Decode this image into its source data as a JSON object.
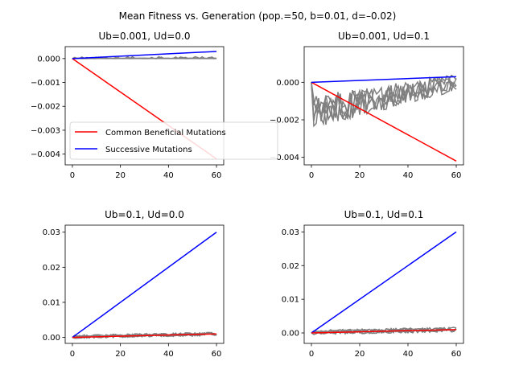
{
  "figure": {
    "title": "Mean Fitness vs. Generation (pop.=50, b=0.01, d=–0.02)"
  },
  "colors": {
    "simulation": "#808080",
    "common": "#ff0000",
    "successive": "#0000ff",
    "axes": "#000000"
  },
  "legend": {
    "entries": [
      {
        "label": "Common Beneficial Mutations",
        "color": "#ff0000"
      },
      {
        "label": "Successive Mutations",
        "color": "#0000ff"
      }
    ]
  },
  "chart_data": [
    {
      "type": "line",
      "title": "Ub=0.001, Ud=0.0",
      "xlim": [
        -3,
        63
      ],
      "ylim": [
        -0.00445,
        0.0005
      ],
      "xticks": [
        0,
        20,
        40,
        60
      ],
      "xtick_labels": [
        "0",
        "20",
        "40",
        "60"
      ],
      "yticks": [
        0,
        -0.001,
        -0.002,
        -0.003,
        -0.004
      ],
      "ytick_labels": [
        "0.000",
        "−0.001",
        "−0.002",
        "−0.003",
        "−0.004"
      ],
      "series": [
        {
          "name": "Common Beneficial Mutations",
          "color": "#ff0000",
          "x": [
            0,
            60
          ],
          "y": [
            0,
            -0.0042
          ]
        },
        {
          "name": "Successive Mutations",
          "color": "#0000ff",
          "x": [
            0,
            60
          ],
          "y": [
            0,
            0.0003
          ]
        }
      ],
      "sim_amp": 4e-05,
      "sim_mode": "flat"
    },
    {
      "type": "line",
      "title": "Ub=0.001, Ud=0.1",
      "xlim": [
        -3,
        63
      ],
      "ylim": [
        -0.0044,
        0.0019
      ],
      "xticks": [
        0,
        20,
        40,
        60
      ],
      "xtick_labels": [
        "0",
        "20",
        "40",
        "60"
      ],
      "yticks": [
        0,
        -0.002,
        -0.004
      ],
      "ytick_labels": [
        "0.000",
        "−0.002",
        "−0.004"
      ],
      "series": [
        {
          "name": "Common Beneficial Mutations",
          "color": "#ff0000",
          "x": [
            0,
            60
          ],
          "y": [
            0,
            -0.0042
          ]
        },
        {
          "name": "Successive Mutations",
          "color": "#0000ff",
          "x": [
            0,
            60
          ],
          "y": [
            0,
            0.0003
          ]
        }
      ],
      "sim_amp": 0.0009,
      "sim_mode": "noisy"
    },
    {
      "type": "line",
      "title": "Ub=0.1, Ud=0.0",
      "xlim": [
        -3,
        63
      ],
      "ylim": [
        -0.0017,
        0.032
      ],
      "xticks": [
        0,
        20,
        40,
        60
      ],
      "xtick_labels": [
        "0",
        "20",
        "40",
        "60"
      ],
      "yticks": [
        0,
        0.01,
        0.02,
        0.03
      ],
      "ytick_labels": [
        "0.00",
        "0.01",
        "0.02",
        "0.03"
      ],
      "series": [
        {
          "name": "Successive Mutations",
          "color": "#0000ff",
          "x": [
            0,
            60
          ],
          "y": [
            0,
            0.03
          ]
        },
        {
          "name": "Common Beneficial Mutations",
          "color": "#ff0000",
          "x": [
            0,
            60
          ],
          "y": [
            0,
            0.001
          ]
        }
      ],
      "sim_amp": 0.0005,
      "sim_mode": "rising"
    },
    {
      "type": "line",
      "title": "Ub=0.1, Ud=0.1",
      "xlim": [
        -3,
        63
      ],
      "ylim": [
        -0.0031,
        0.032
      ],
      "xticks": [
        0,
        20,
        40,
        60
      ],
      "xtick_labels": [
        "0",
        "20",
        "40",
        "60"
      ],
      "yticks": [
        0,
        0.01,
        0.02,
        0.03
      ],
      "ytick_labels": [
        "0.00",
        "0.01",
        "0.02",
        "0.03"
      ],
      "series": [
        {
          "name": "Successive Mutations",
          "color": "#0000ff",
          "x": [
            0,
            60
          ],
          "y": [
            0,
            0.03
          ]
        },
        {
          "name": "Common Beneficial Mutations",
          "color": "#ff0000",
          "x": [
            0,
            60
          ],
          "y": [
            0,
            0.001
          ]
        }
      ],
      "sim_amp": 0.0007,
      "sim_mode": "rising"
    }
  ]
}
